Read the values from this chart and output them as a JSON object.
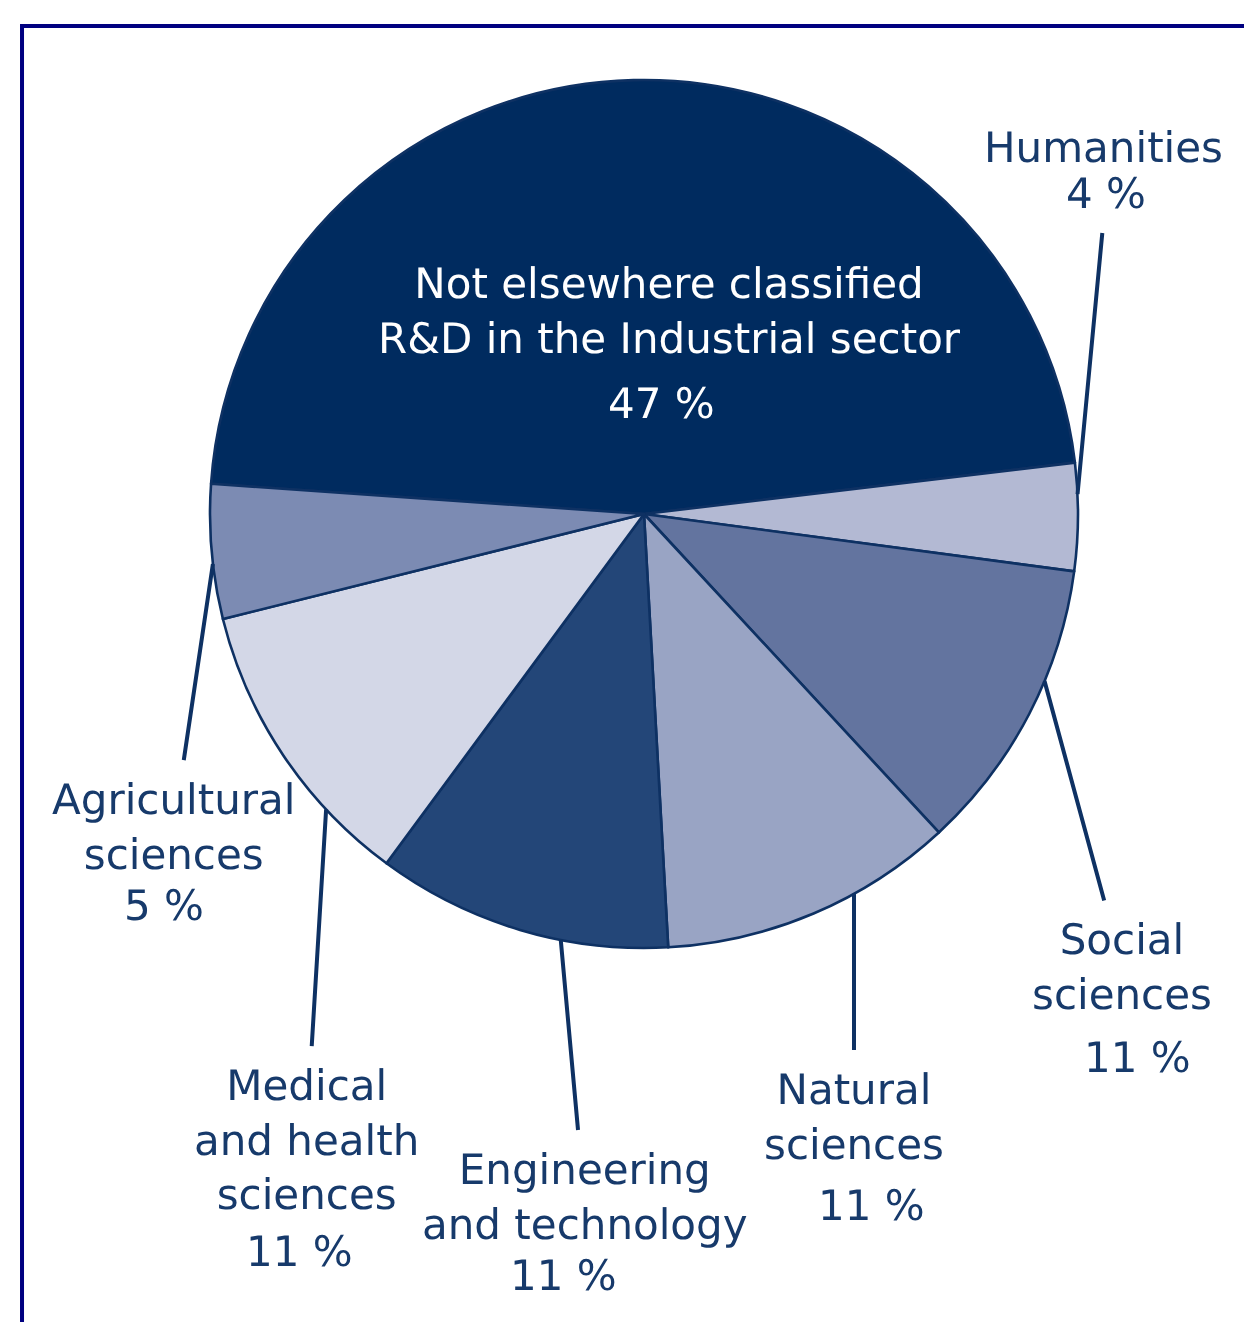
{
  "chart_data": {
    "type": "pie",
    "categories": [
      "Not elsewhere classified R&D in the Industrial sector",
      "Humanities",
      "Social sciences",
      "Natural sciences",
      "Engineering and technology",
      "Medical and health sciences",
      "Agricultural sciences"
    ],
    "values": [
      47,
      4,
      11,
      11,
      11,
      11,
      5
    ],
    "value_labels": [
      "47 %",
      "4 %",
      "11 %",
      "11 %",
      "11 %",
      "11 %",
      "5 %"
    ],
    "colors": [
      "#002b5f",
      "#b3b9d3",
      "#63749f",
      "#99a4c4",
      "#234678",
      "#d3d7e7",
      "#7c8bb3"
    ],
    "legend": false
  }
}
